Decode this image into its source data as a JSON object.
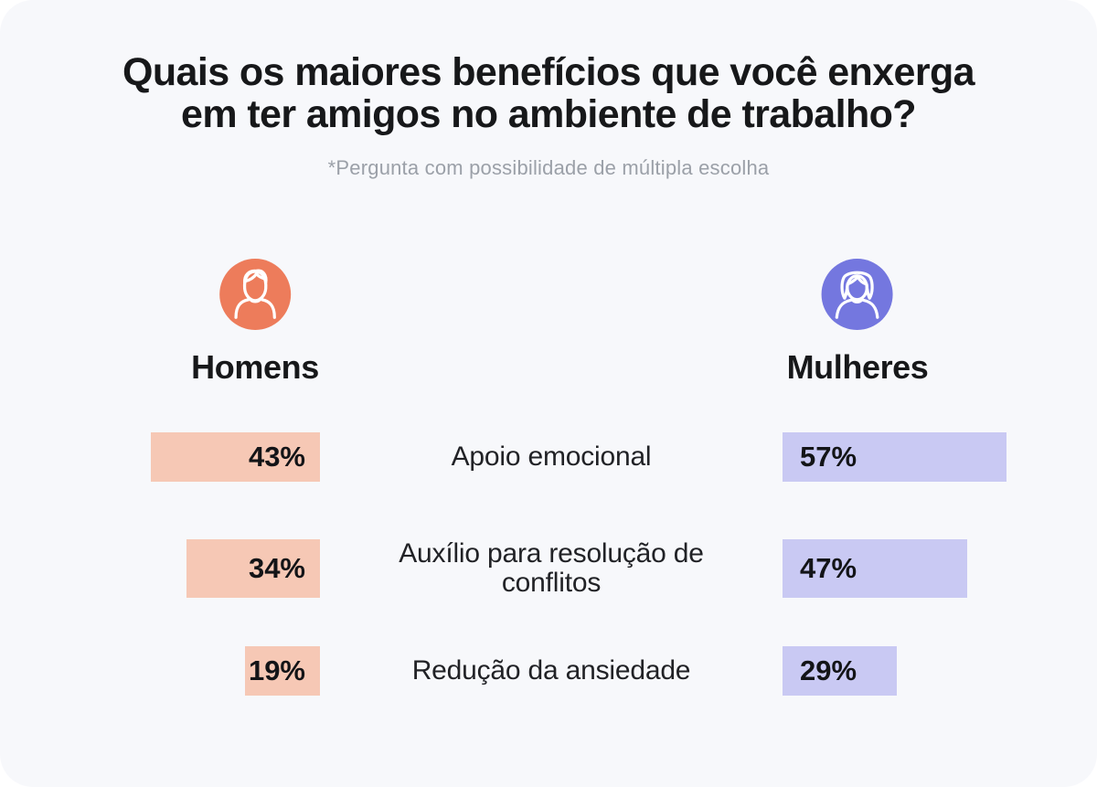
{
  "card": {
    "title": "Quais os maiores benefícios que você enxerga\nem ter amigos no ambiente de trabalho?",
    "footnote": "*Pergunta com possibilidade de múltipla escolha"
  },
  "legend": {
    "men": {
      "label": "Homens",
      "icon": "man-avatar-icon",
      "circle_color": "#ED7C5B"
    },
    "women": {
      "label": "Mulheres",
      "icon": "woman-avatar-icon",
      "circle_color": "#7477DF"
    }
  },
  "chart_data": {
    "type": "bar",
    "orientation": "horizontal-mirrored",
    "title": "Quais os maiores benefícios que você enxerga em ter amigos no ambiente de trabalho?",
    "subtitle": "*Pergunta com possibilidade de múltipla escolha",
    "categories": [
      "Apoio emocional",
      "Auxílio para resolução de conflitos",
      "Redução da ansiedade"
    ],
    "series": [
      {
        "name": "Homens",
        "values": [
          43,
          34,
          19
        ],
        "labels": [
          "43%",
          "34%",
          "19%"
        ],
        "bar_color": "#F6C8B5"
      },
      {
        "name": "Mulheres",
        "values": [
          57,
          47,
          29
        ],
        "labels": [
          "57%",
          "47%",
          "29%"
        ],
        "bar_color": "#C9C9F3"
      }
    ],
    "unit": "%",
    "value_labels_position": "inside-bars",
    "legend_position": "above-columns"
  }
}
